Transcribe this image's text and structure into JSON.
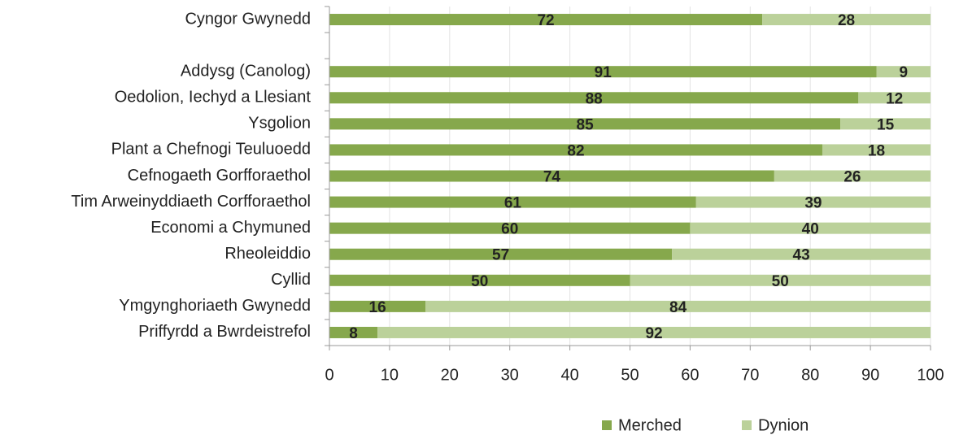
{
  "chart_data": {
    "type": "stacked-bar-horizontal",
    "categories": [
      "Cyngor Gwynedd",
      null,
      "Addysg (Canolog)",
      "Oedolion, Iechyd a Llesiant",
      "Ysgolion",
      "Plant a Chefnogi Teuluoedd",
      "Cefnogaeth Gorfforaethol",
      "Tim Arweinyddiaeth Corfforaethol",
      "Economi a Chymuned",
      "Rheoleiddio",
      "Cyllid",
      "Ymgynghoriaeth Gwynedd",
      "Priffyrdd a Bwrdeistrefol"
    ],
    "series": [
      {
        "name": "Merched",
        "color": "#86a84c",
        "values": [
          72,
          null,
          91,
          88,
          85,
          82,
          74,
          61,
          60,
          57,
          50,
          16,
          8
        ]
      },
      {
        "name": "Dynion",
        "color": "#bbd19a",
        "values": [
          28,
          null,
          9,
          12,
          15,
          18,
          26,
          39,
          40,
          43,
          50,
          84,
          92
        ]
      }
    ],
    "xlim": [
      0,
      100
    ],
    "xticks": [
      0,
      10,
      20,
      30,
      40,
      50,
      60,
      70,
      80,
      90,
      100
    ],
    "grid": true,
    "legend": "bottom"
  }
}
